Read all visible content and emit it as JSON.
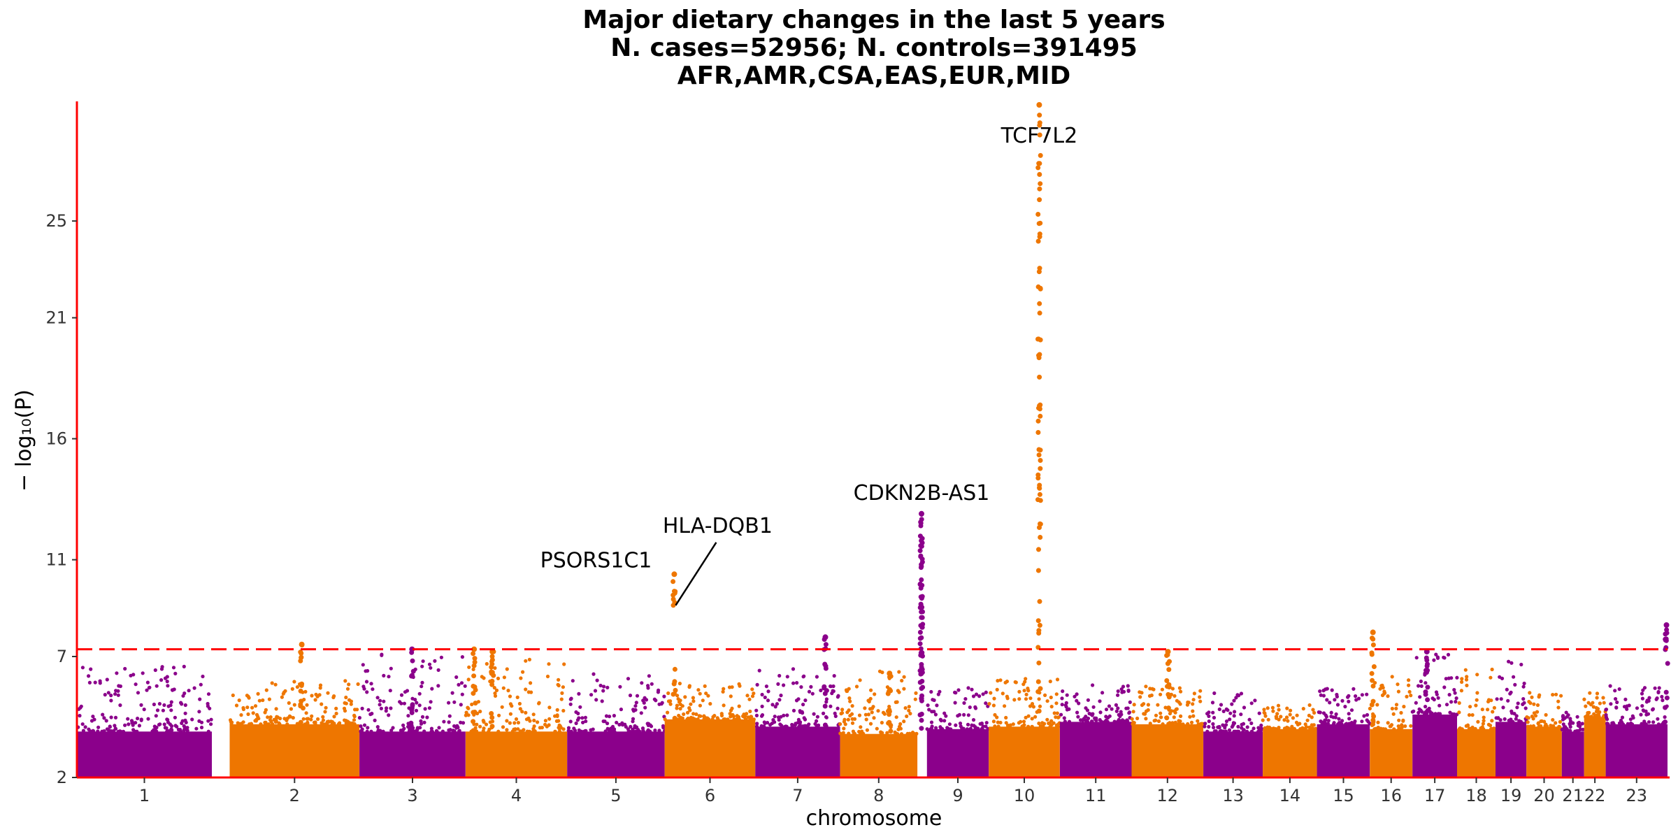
{
  "chart_data": {
    "type": "scatter",
    "subtype": "manhattan",
    "title_lines": [
      "Major dietary changes in the last 5 years",
      "N. cases=52956; N. controls=391495",
      "AFR,AMR,CSA,EAS,EUR,MID"
    ],
    "xlabel": "chromosome",
    "ylabel": "− log₁₀(P)",
    "ylim": [
      2,
      29.8
    ],
    "yticks": [
      2,
      7,
      11,
      16,
      21,
      25
    ],
    "significance_threshold": 7.3,
    "colors": {
      "odd": "#8B008B",
      "even": "#EE7600",
      "threshold": "#FF0000",
      "axis": "#FF0000"
    },
    "chromosomes": [
      {
        "label": "1",
        "start": 0.0,
        "end": 0.393,
        "base_top": 3.9,
        "max": 6.6
      },
      {
        "label": "2",
        "start": 0.445,
        "end": 0.823,
        "base_top": 4.2,
        "max": 6.0
      },
      {
        "label": "3",
        "start": 0.823,
        "end": 1.132,
        "base_top": 3.9,
        "max": 7.3
      },
      {
        "label": "4",
        "start": 1.132,
        "end": 1.428,
        "base_top": 3.9,
        "max": 7.1
      },
      {
        "label": "5",
        "start": 1.428,
        "end": 1.712,
        "base_top": 3.9,
        "max": 6.3
      },
      {
        "label": "6",
        "start": 1.712,
        "end": 1.976,
        "base_top": 4.4,
        "max": 5.9
      },
      {
        "label": "7",
        "start": 1.976,
        "end": 2.223,
        "base_top": 4.1,
        "max": 6.5
      },
      {
        "label": "8",
        "start": 2.223,
        "end": 2.448,
        "base_top": 3.8,
        "max": 6.4
      },
      {
        "label": "9",
        "start": 2.476,
        "end": 2.656,
        "base_top": 4.0,
        "max": 5.7
      },
      {
        "label": "10",
        "start": 2.656,
        "end": 2.863,
        "base_top": 4.1,
        "max": 6.1
      },
      {
        "label": "11",
        "start": 2.863,
        "end": 3.072,
        "base_top": 4.3,
        "max": 5.9
      },
      {
        "label": "12",
        "start": 3.072,
        "end": 3.281,
        "base_top": 4.2,
        "max": 5.8
      },
      {
        "label": "13",
        "start": 3.281,
        "end": 3.454,
        "base_top": 3.9,
        "max": 5.5
      },
      {
        "label": "14",
        "start": 3.454,
        "end": 3.612,
        "base_top": 4.0,
        "max": 5.0
      },
      {
        "label": "15",
        "start": 3.612,
        "end": 3.766,
        "base_top": 4.2,
        "max": 5.8
      },
      {
        "label": "16",
        "start": 3.766,
        "end": 3.89,
        "base_top": 4.0,
        "max": 6.2
      },
      {
        "label": "17",
        "start": 3.89,
        "end": 4.02,
        "base_top": 4.6,
        "max": 7.1
      },
      {
        "label": "18",
        "start": 4.02,
        "end": 4.132,
        "base_top": 4.0,
        "max": 6.5
      },
      {
        "label": "19",
        "start": 4.132,
        "end": 4.222,
        "base_top": 4.3,
        "max": 6.9
      },
      {
        "label": "20",
        "start": 4.222,
        "end": 4.325,
        "base_top": 4.1,
        "max": 5.6
      },
      {
        "label": "21",
        "start": 4.325,
        "end": 4.39,
        "base_top": 3.9,
        "max": 4.8
      },
      {
        "label": "22",
        "start": 4.39,
        "end": 4.453,
        "base_top": 4.5,
        "max": 5.5
      },
      {
        "label": "23",
        "start": 4.453,
        "end": 4.633,
        "base_top": 4.2,
        "max": 5.9
      }
    ],
    "peaks": [
      {
        "chrom": "2",
        "pos": 0.655,
        "max_p": 7.5
      },
      {
        "chrom": "3",
        "pos": 0.976,
        "max_p": 7.3
      },
      {
        "chrom": "4",
        "pos": 1.157,
        "max_p": 7.3
      },
      {
        "chrom": "4",
        "pos": 1.21,
        "max_p": 7.2
      },
      {
        "chrom": "6",
        "pos": 1.74,
        "max_p": 10.4,
        "label": "PSORS1C1"
      },
      {
        "chrom": "7",
        "pos": 2.18,
        "max_p": 7.8
      },
      {
        "chrom": "8",
        "pos": 2.367,
        "max_p": 6.3
      },
      {
        "chrom": "9",
        "pos": 2.46,
        "max_p": 12.9,
        "label": "CDKN2B-AS1"
      },
      {
        "chrom": "10",
        "pos": 2.803,
        "max_p": 29.8,
        "label": "TCF7L2"
      },
      {
        "chrom": "12",
        "pos": 3.178,
        "max_p": 7.2
      },
      {
        "chrom": "16",
        "pos": 3.775,
        "max_p": 8.0
      },
      {
        "chrom": "17",
        "pos": 3.932,
        "max_p": 7.2
      },
      {
        "chrom": "23",
        "pos": 4.63,
        "max_p": 8.3
      }
    ],
    "annotations": [
      {
        "text": "TCF7L2",
        "x": 2.803,
        "y": 29.4
      },
      {
        "text": "CDKN2B-AS1",
        "x": 2.46,
        "y": 13.3
      },
      {
        "text": "HLA-DQB1",
        "x": 1.74,
        "y": 9.0,
        "leader": true
      },
      {
        "text": "PSORS1C1",
        "x": 1.74,
        "y": 10.4
      }
    ]
  }
}
